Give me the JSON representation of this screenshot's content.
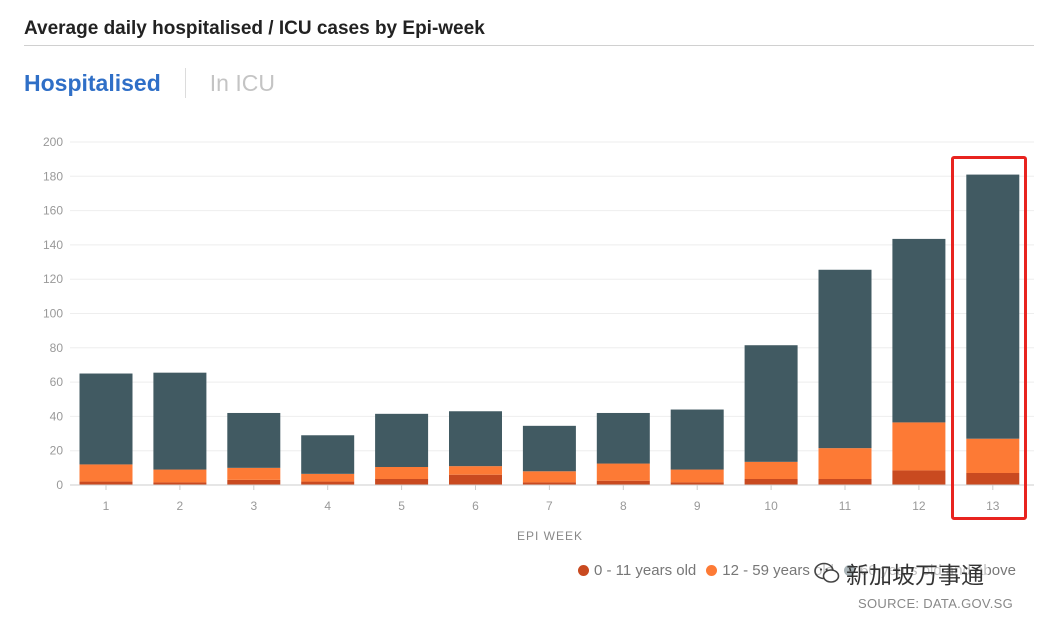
{
  "header": {
    "title": "Average daily hospitalised / ICU cases by Epi-week"
  },
  "tabs": [
    {
      "label": "Hospitalised",
      "active": true
    },
    {
      "label": "In ICU",
      "active": false
    }
  ],
  "legend": [
    {
      "label": "0 - 11 years old",
      "color": "#c94a20"
    },
    {
      "label": "12 - 59 years old",
      "color": "#fd7a35"
    },
    {
      "label": "60 years old and above",
      "color": "#415a62"
    }
  ],
  "watermark": {
    "text": "新加坡万事通"
  },
  "source": "SOURCE: DATA.GOV.SG",
  "chart_data": {
    "type": "bar",
    "stacked": true,
    "title": "Average daily hospitalised / ICU cases by Epi-week",
    "xlabel": "EPI WEEK",
    "ylabel": "",
    "ylim": [
      0,
      200
    ],
    "yticks": [
      "0",
      "20",
      "40",
      "60",
      "80",
      "100",
      "120",
      "140",
      "160",
      "180",
      "200"
    ],
    "categories": [
      "1",
      "2",
      "3",
      "4",
      "5",
      "6",
      "7",
      "8",
      "9",
      "10",
      "11",
      "12",
      "13"
    ],
    "series": [
      {
        "name": "0 - 11 years old",
        "color": "#c94a20",
        "values": [
          2,
          1.5,
          3,
          2,
          3.5,
          6,
          1.5,
          2.5,
          1.5,
          3.5,
          3.5,
          8.5,
          7
        ]
      },
      {
        "name": "12 - 59 years old",
        "color": "#fd7a35",
        "values": [
          10,
          7.5,
          7,
          4.5,
          7,
          5,
          6.5,
          10,
          7.5,
          10,
          18,
          28,
          20
        ]
      },
      {
        "name": "60 years old and above",
        "color": "#415a62",
        "values": [
          53,
          56.5,
          32,
          22.5,
          31,
          32,
          26.5,
          29.5,
          35,
          68,
          104,
          107,
          154
        ]
      }
    ],
    "highlighted_category": "13"
  }
}
